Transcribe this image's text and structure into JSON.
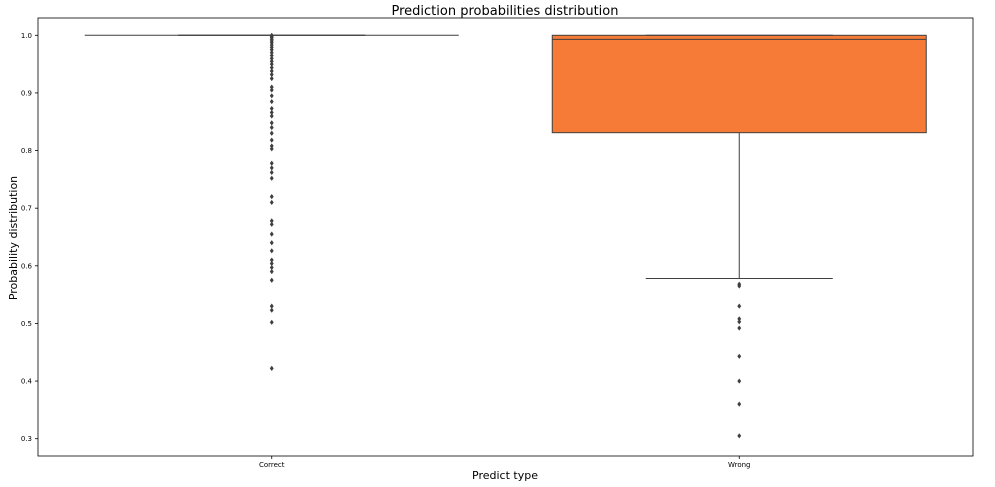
{
  "chart_data": {
    "type": "box",
    "title": "Prediction probabilities distribution",
    "xlabel": "Predict type",
    "ylabel": "Probability distribution",
    "ylim": [
      0.27,
      1.03
    ],
    "yticks": [
      0.3,
      0.4,
      0.5,
      0.6,
      0.7,
      0.8,
      0.9,
      1.0
    ],
    "ytick_labels": [
      "0.3",
      "0.4",
      "0.5",
      "0.6",
      "0.7",
      "0.8",
      "0.9",
      "1.0"
    ],
    "categories": [
      "Correct",
      "Wrong"
    ],
    "grid": false,
    "boxes": [
      {
        "category": "Correct",
        "color": "#ffffff",
        "q1": 1.0,
        "median": 1.0,
        "q3": 1.0,
        "whisker_low": 1.0,
        "whisker_high": 1.0,
        "outliers": [
          1.0,
          0.998,
          0.996,
          0.993,
          0.99,
          0.987,
          0.983,
          0.979,
          0.975,
          0.97,
          0.965,
          0.96,
          0.955,
          0.95,
          0.944,
          0.938,
          0.932,
          0.925,
          0.91,
          0.905,
          0.895,
          0.885,
          0.873,
          0.866,
          0.86,
          0.848,
          0.84,
          0.83,
          0.818,
          0.808,
          0.803,
          0.778,
          0.77,
          0.762,
          0.752,
          0.72,
          0.71,
          0.678,
          0.672,
          0.655,
          0.64,
          0.626,
          0.61,
          0.604,
          0.597,
          0.59,
          0.575,
          0.53,
          0.523,
          0.502,
          0.422
        ]
      },
      {
        "category": "Wrong",
        "color": "#f57b36",
        "q1": 0.831,
        "median": 0.993,
        "q3": 1.0,
        "whisker_low": 0.578,
        "whisker_high": 1.0,
        "outliers": [
          0.568,
          0.565,
          0.53,
          0.508,
          0.503,
          0.492,
          0.443,
          0.4,
          0.36,
          0.305
        ]
      }
    ]
  }
}
